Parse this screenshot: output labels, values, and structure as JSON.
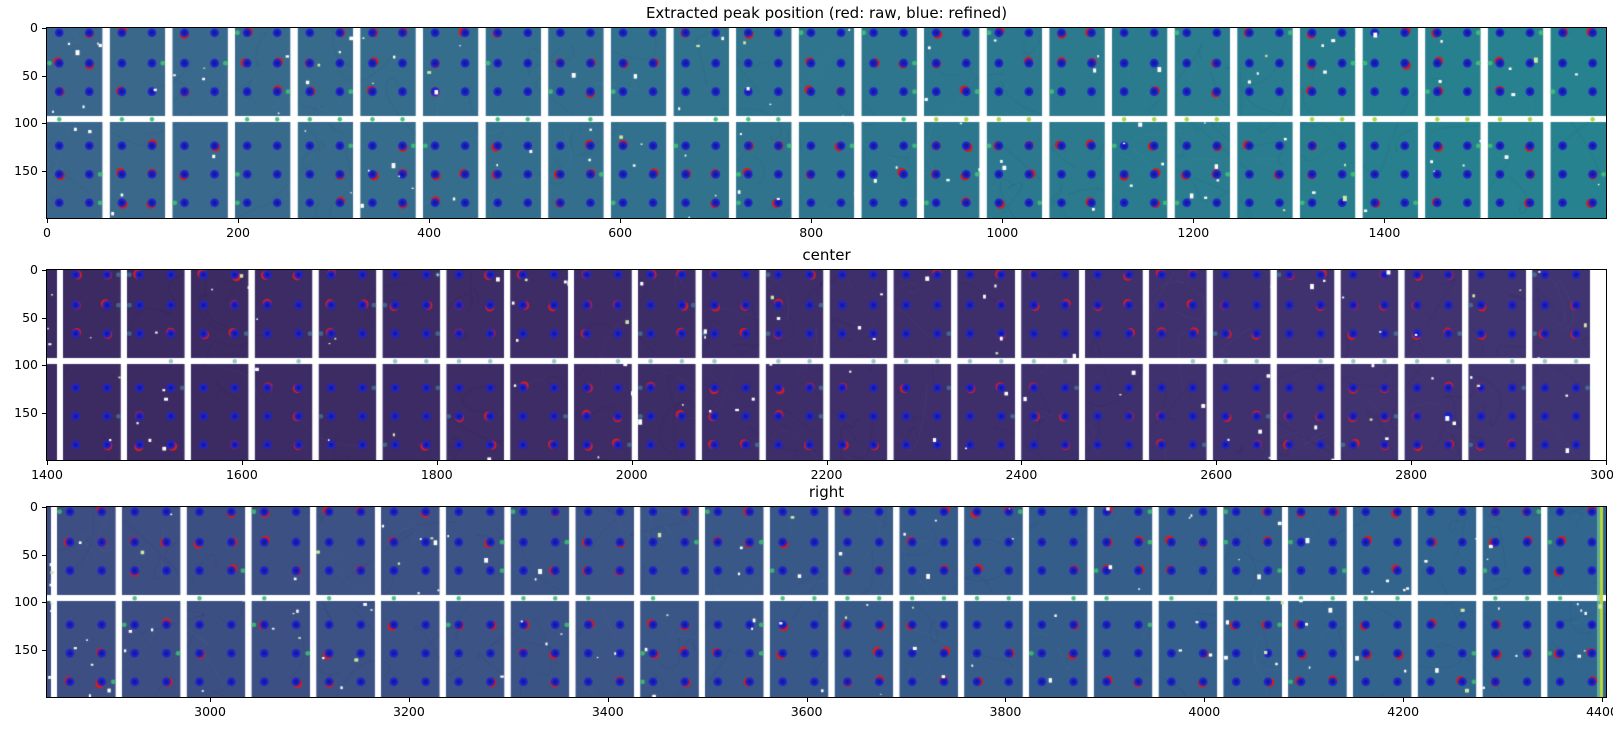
{
  "figure": {
    "kind": "matplotlib-figure",
    "background": "#ffffff",
    "marker_legend": {
      "raw_label": "red: raw",
      "refined_label": "blue: refined",
      "raw_color": "#cf1f1f",
      "refined_color": "#2023cf"
    }
  },
  "chart_data": [
    {
      "type": "heatmap",
      "title": "Extracted peak position (red: raw, blue: refined)",
      "xlabel": "",
      "ylabel": "",
      "x_range": [
        0,
        1632
      ],
      "x_ticks": [
        0,
        200,
        400,
        600,
        800,
        1000,
        1200,
        1400
      ],
      "y_range": [
        0,
        200
      ],
      "y_ticks": [
        0,
        50,
        100,
        150
      ],
      "grid": false,
      "legend_position": "none",
      "panels": {
        "count": 25,
        "gap": 7,
        "sliver": 0,
        "right_margin": 0,
        "h_gap_y": 88,
        "h_gap_height": 6
      },
      "bg_gradient": [
        "#3b668b",
        "#336f8d",
        "#2b7a8e",
        "#26828e"
      ],
      "edge_dot_color": "#3fbd7a",
      "gap_dot_color": "#a6d53c",
      "rows_upper": [
        5,
        37,
        67
      ],
      "rows_lower": [
        124,
        154,
        184
      ],
      "dot_columns": [
        0.22,
        0.76
      ],
      "marker": {
        "raw": "#cf1f1f",
        "refined": "#2023cf",
        "refined_core": "#131a96"
      },
      "seed": 7,
      "edge_dot_alpha": 0.95,
      "speckles_per_panel": 7,
      "red_ring_probability": 0.42,
      "yellow_right_edge": null
    },
    {
      "type": "heatmap",
      "title": "center",
      "xlabel": "",
      "ylabel": "",
      "x_range": [
        1400,
        3000
      ],
      "x_ticks": [
        1400,
        1600,
        1800,
        2000,
        2200,
        2400,
        2600,
        2800,
        3000
      ],
      "y_range": [
        0,
        200
      ],
      "y_ticks": [
        0,
        50,
        100,
        150
      ],
      "grid": false,
      "legend_position": "none",
      "panels": {
        "count": 24,
        "gap": 6,
        "sliver": 10,
        "right_margin": 16,
        "h_gap_y": 88,
        "h_gap_height": 6
      },
      "bg_gradient": [
        "#3c2a62",
        "#3d2c66",
        "#3e306c",
        "#413572"
      ],
      "edge_dot_color": "#4796aa",
      "gap_dot_color": "#4796aa",
      "rows_upper": [
        5,
        37,
        67
      ],
      "rows_lower": [
        124,
        154,
        184
      ],
      "dot_columns": [
        0.22,
        0.76
      ],
      "marker": {
        "raw": "#cf1f1f",
        "refined": "#2023cf",
        "refined_core": "#131a96"
      },
      "seed": 13,
      "edge_dot_alpha": 0.55,
      "speckles_per_panel": 5,
      "red_ring_probability": 0.5,
      "yellow_right_edge": null
    },
    {
      "type": "heatmap",
      "title": "right",
      "xlabel": "",
      "ylabel": "",
      "x_range": [
        2836,
        4404
      ],
      "x_ticks": [
        3000,
        3200,
        3400,
        3600,
        3800,
        4000,
        4200,
        4400
      ],
      "y_range": [
        0,
        200
      ],
      "y_ticks": [
        0,
        50,
        100,
        150
      ],
      "grid": false,
      "legend_position": "none",
      "panels": {
        "count": 24,
        "gap": 6,
        "sliver": 4,
        "right_margin": 0,
        "h_gap_y": 88,
        "h_gap_height": 6
      },
      "bg_gradient": [
        "#3d4d82",
        "#3b5486",
        "#355e8a",
        "#31688e"
      ],
      "edge_dot_color": "#3dbb72",
      "gap_dot_color": "#3dbb72",
      "rows_upper": [
        5,
        37,
        67
      ],
      "rows_lower": [
        124,
        154,
        184
      ],
      "dot_columns": [
        0.22,
        0.76
      ],
      "marker": {
        "raw": "#cf1f1f",
        "refined": "#2023cf",
        "refined_core": "#131a96"
      },
      "seed": 21,
      "edge_dot_alpha": 0.9,
      "speckles_per_panel": 7,
      "red_ring_probability": 0.45,
      "yellow_right_edge": "#b9d53a"
    }
  ],
  "layout_values": {
    "subplot_tops": [
      28,
      270,
      507
    ],
    "title_tops": [
      4,
      246,
      483
    ]
  }
}
